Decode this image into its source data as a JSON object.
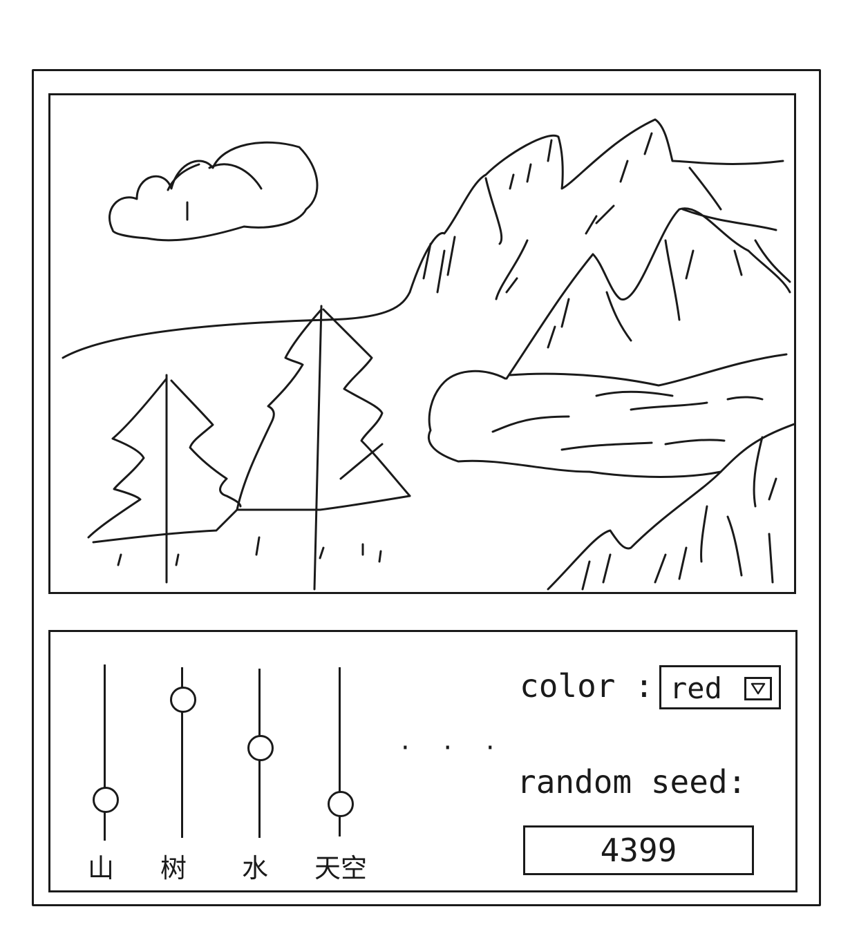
{
  "canvas": {
    "scene": "landscape-sketch"
  },
  "sliders": [
    {
      "label": "山",
      "value": 0.23
    },
    {
      "label": "树",
      "value": 0.81
    },
    {
      "label": "水",
      "value": 0.53
    },
    {
      "label": "天空",
      "value": 0.19
    }
  ],
  "more_indicator": "· · ·",
  "color": {
    "label": "color :",
    "selected": "red"
  },
  "seed": {
    "label": "random seed:",
    "value": "4399"
  },
  "icons": {
    "dropdown": "triangle-down-icon"
  }
}
